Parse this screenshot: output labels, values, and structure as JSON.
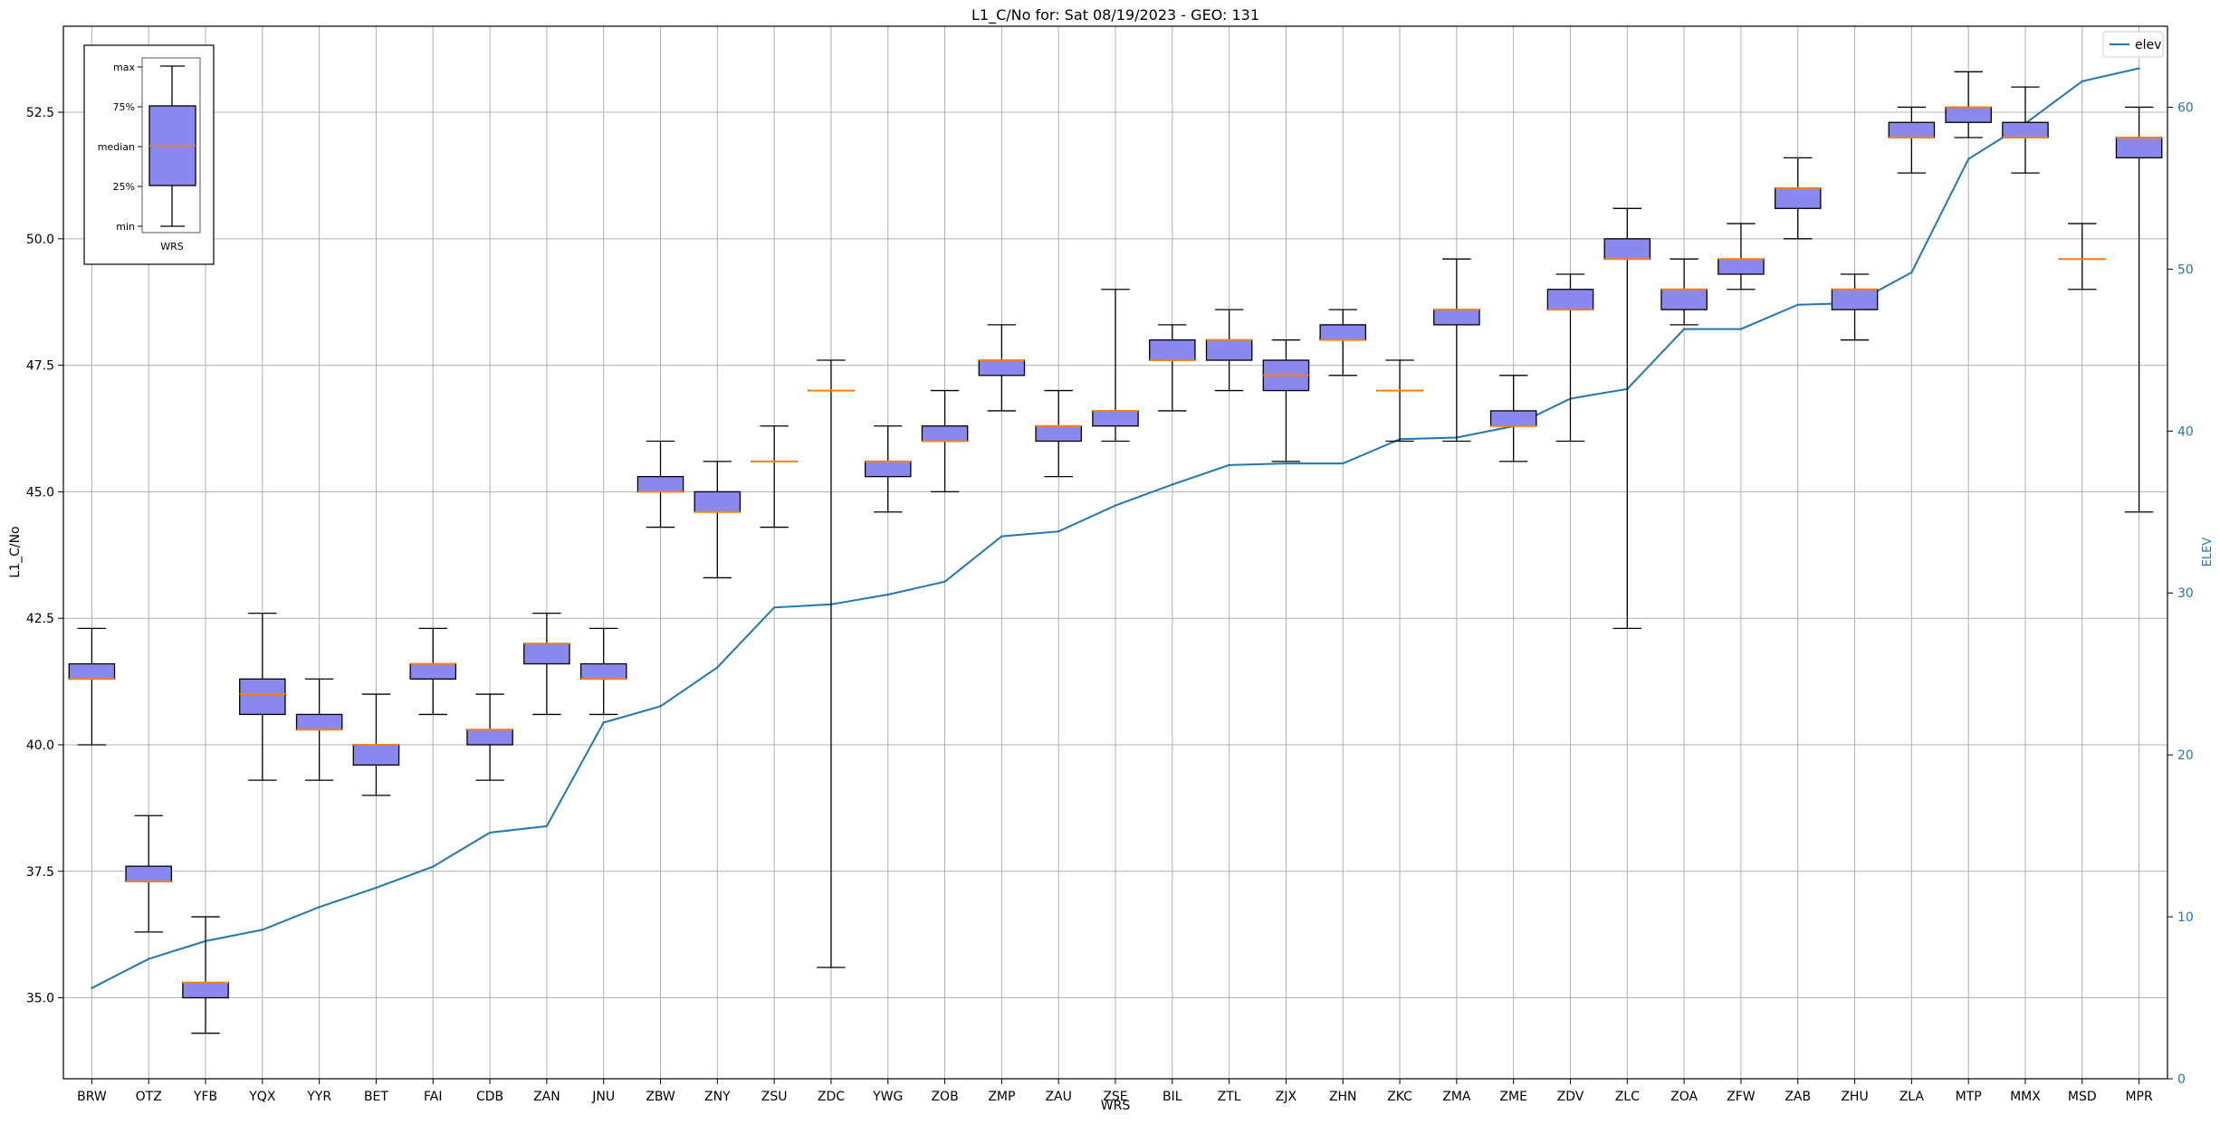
{
  "chart_data": {
    "type": "box",
    "title": "L1_C/No for: Sat 08/19/2023 - GEO: 131",
    "xlabel": "WRS",
    "ylabel": "L1_C/No",
    "y2label": "ELEV",
    "ylim": [
      33.4,
      54.2
    ],
    "y2lim": [
      0,
      65
    ],
    "yticks": [
      35.0,
      37.5,
      40.0,
      42.5,
      45.0,
      47.5,
      50.0,
      52.5
    ],
    "y2ticks": [
      0,
      10,
      20,
      30,
      40,
      50,
      60
    ],
    "grid": true,
    "colors": {
      "box_fill": "#8888ee",
      "median": "#ff7f0e",
      "elev_line": "#1f77b4",
      "grid": "#b0b0b0",
      "axis": "#000000",
      "y2_axis": "#1f77b4"
    },
    "categories": [
      "BRW",
      "OTZ",
      "YFB",
      "YQX",
      "YYR",
      "BET",
      "FAI",
      "CDB",
      "ZAN",
      "JNU",
      "ZBW",
      "ZNY",
      "ZSU",
      "ZDC",
      "YWG",
      "ZOB",
      "ZMP",
      "ZAU",
      "ZSE",
      "BIL",
      "ZTL",
      "ZJX",
      "ZHN",
      "ZKC",
      "ZMA",
      "ZME",
      "ZDV",
      "ZLC",
      "ZOA",
      "ZFW",
      "ZAB",
      "ZHU",
      "ZLA",
      "MTP",
      "MMX",
      "MSD",
      "MPR"
    ],
    "boxes": [
      {
        "min": 40.0,
        "q1": 41.3,
        "median": 41.3,
        "q3": 41.6,
        "max": 42.3
      },
      {
        "min": 36.3,
        "q1": 37.3,
        "median": 37.3,
        "q3": 37.6,
        "max": 38.6
      },
      {
        "min": 34.3,
        "q1": 35.0,
        "median": 35.3,
        "q3": 35.3,
        "max": 36.6
      },
      {
        "min": 39.3,
        "q1": 40.6,
        "median": 41.0,
        "q3": 41.3,
        "max": 42.6
      },
      {
        "min": 39.3,
        "q1": 40.3,
        "median": 40.3,
        "q3": 40.6,
        "max": 41.3
      },
      {
        "min": 39.0,
        "q1": 39.6,
        "median": 40.0,
        "q3": 40.0,
        "max": 41.0
      },
      {
        "min": 40.6,
        "q1": 41.3,
        "median": 41.6,
        "q3": 41.6,
        "max": 42.3
      },
      {
        "min": 39.3,
        "q1": 40.0,
        "median": 40.3,
        "q3": 40.3,
        "max": 41.0
      },
      {
        "min": 40.6,
        "q1": 41.6,
        "median": 42.0,
        "q3": 42.0,
        "max": 42.6
      },
      {
        "min": 40.6,
        "q1": 41.3,
        "median": 41.3,
        "q3": 41.6,
        "max": 42.3
      },
      {
        "min": 44.3,
        "q1": 45.0,
        "median": 45.0,
        "q3": 45.3,
        "max": 46.0
      },
      {
        "min": 43.3,
        "q1": 44.6,
        "median": 44.6,
        "q3": 45.0,
        "max": 45.6
      },
      {
        "min": 44.3,
        "q1": 45.6,
        "median": 45.6,
        "q3": 45.6,
        "max": 46.3
      },
      {
        "min": 35.6,
        "q1": 47.0,
        "median": 47.0,
        "q3": 47.0,
        "max": 47.6
      },
      {
        "min": 44.6,
        "q1": 45.3,
        "median": 45.6,
        "q3": 45.6,
        "max": 46.3
      },
      {
        "min": 45.0,
        "q1": 46.0,
        "median": 46.0,
        "q3": 46.3,
        "max": 47.0
      },
      {
        "min": 46.6,
        "q1": 47.3,
        "median": 47.6,
        "q3": 47.6,
        "max": 48.3
      },
      {
        "min": 45.3,
        "q1": 46.0,
        "median": 46.3,
        "q3": 46.3,
        "max": 47.0
      },
      {
        "min": 46.0,
        "q1": 46.3,
        "median": 46.6,
        "q3": 46.6,
        "max": 49.0
      },
      {
        "min": 46.6,
        "q1": 47.6,
        "median": 47.6,
        "q3": 48.0,
        "max": 48.3
      },
      {
        "min": 47.0,
        "q1": 47.6,
        "median": 48.0,
        "q3": 48.0,
        "max": 48.6
      },
      {
        "min": 45.6,
        "q1": 47.0,
        "median": 47.3,
        "q3": 47.6,
        "max": 48.0
      },
      {
        "min": 47.3,
        "q1": 48.0,
        "median": 48.0,
        "q3": 48.3,
        "max": 48.6
      },
      {
        "min": 46.0,
        "q1": 47.0,
        "median": 47.0,
        "q3": 47.0,
        "max": 47.6
      },
      {
        "min": 46.0,
        "q1": 48.3,
        "median": 48.6,
        "q3": 48.6,
        "max": 49.6
      },
      {
        "min": 45.6,
        "q1": 46.3,
        "median": 46.3,
        "q3": 46.6,
        "max": 47.3
      },
      {
        "min": 46.0,
        "q1": 48.6,
        "median": 48.6,
        "q3": 49.0,
        "max": 49.3
      },
      {
        "min": 42.3,
        "q1": 49.6,
        "median": 49.6,
        "q3": 50.0,
        "max": 50.6
      },
      {
        "min": 48.3,
        "q1": 48.6,
        "median": 49.0,
        "q3": 49.0,
        "max": 49.6
      },
      {
        "min": 49.0,
        "q1": 49.3,
        "median": 49.6,
        "q3": 49.6,
        "max": 50.3
      },
      {
        "min": 50.0,
        "q1": 50.6,
        "median": 51.0,
        "q3": 51.0,
        "max": 51.6
      },
      {
        "min": 48.0,
        "q1": 48.6,
        "median": 49.0,
        "q3": 49.0,
        "max": 49.3
      },
      {
        "min": 51.3,
        "q1": 52.0,
        "median": 52.0,
        "q3": 52.3,
        "max": 52.6
      },
      {
        "min": 52.0,
        "q1": 52.3,
        "median": 52.6,
        "q3": 52.6,
        "max": 53.3
      },
      {
        "min": 51.3,
        "q1": 52.0,
        "median": 52.0,
        "q3": 52.3,
        "max": 53.0
      },
      {
        "min": 49.0,
        "q1": 49.6,
        "median": 49.6,
        "q3": 49.6,
        "max": 50.3
      },
      {
        "min": 44.6,
        "q1": 51.6,
        "median": 52.0,
        "q3": 52.0,
        "max": 52.6
      }
    ],
    "series": [
      {
        "name": "elev",
        "axis": "y2",
        "values": [
          5.6,
          7.4,
          8.5,
          9.2,
          10.6,
          11.8,
          13.1,
          15.2,
          15.6,
          22.0,
          23.0,
          25.4,
          29.1,
          29.3,
          29.9,
          30.7,
          33.5,
          33.8,
          35.4,
          36.7,
          37.9,
          38.0,
          38.0,
          39.5,
          39.6,
          40.3,
          42.0,
          42.6,
          46.3,
          46.3,
          47.8,
          47.9,
          49.8,
          56.8,
          59.0,
          61.6,
          62.4
        ]
      }
    ],
    "legend": {
      "position": "top-right",
      "entries": [
        "elev"
      ]
    },
    "inset_legend": {
      "position": "top-left",
      "labels": [
        "max",
        "75%",
        "median",
        "25%",
        "min"
      ],
      "xlabel": "WRS"
    }
  }
}
